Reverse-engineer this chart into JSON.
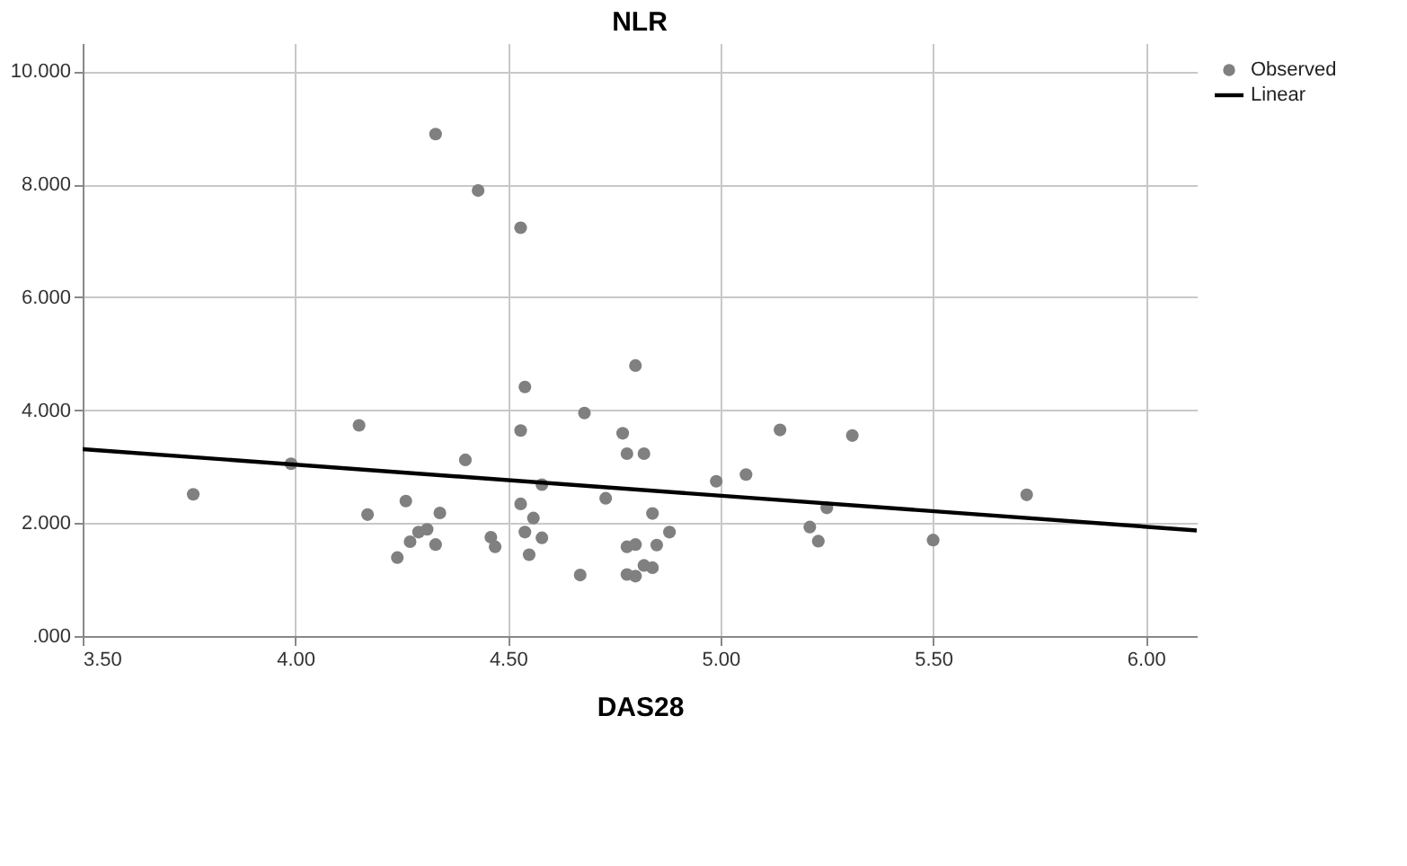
{
  "chart_data": {
    "type": "scatter",
    "title": "NLR",
    "xlabel": "DAS28",
    "xlim": [
      3.5,
      6.12
    ],
    "xticks": [
      {
        "value": 3.5,
        "label": "3.50"
      },
      {
        "value": 4,
        "label": "4.00"
      },
      {
        "value": 4.5,
        "label": "4.50"
      },
      {
        "value": 5,
        "label": "5.00"
      },
      {
        "value": 5.5,
        "label": "5.50"
      },
      {
        "value": 6,
        "label": "6.00"
      }
    ],
    "ylim": [
      0,
      10.5
    ],
    "yticks": [
      {
        "value": 0,
        "label": ".000"
      },
      {
        "value": 2,
        "label": "2.000"
      },
      {
        "value": 4,
        "label": "4.000"
      },
      {
        "value": 6,
        "label": "6.000"
      },
      {
        "value": 8,
        "label": "8.000"
      },
      {
        "value": 10,
        "label": "10.000"
      }
    ],
    "grid": true,
    "legend": "top right",
    "series": [
      {
        "name": "Observed",
        "type": "scatter",
        "marker": "circle",
        "color": "#808080",
        "x": [
          4.33,
          4.43,
          4.53,
          4.8,
          4.54,
          4.68,
          4.15,
          4.53,
          4.77,
          4.4,
          4.78,
          4.82,
          3.99,
          4.58,
          3.76,
          4.73,
          4.26,
          4.53,
          4.17,
          4.34,
          4.56,
          4.84,
          4.31,
          4.29,
          4.88,
          4.54,
          4.46,
          4.58,
          4.27,
          4.33,
          4.47,
          4.78,
          4.8,
          4.85,
          4.24,
          4.55,
          4.82,
          4.84,
          4.67,
          4.78,
          4.8,
          4.99,
          5.06,
          5.14,
          5.31,
          5.25,
          5.21,
          5.23,
          5.5,
          5.72
        ],
        "values": [
          8.89,
          7.89,
          7.23,
          4.79,
          4.41,
          3.95,
          3.73,
          3.64,
          3.59,
          3.12,
          3.23,
          3.23,
          3.05,
          2.68,
          2.51,
          2.44,
          2.39,
          2.34,
          2.15,
          2.18,
          2.09,
          2.17,
          1.89,
          1.84,
          1.84,
          1.84,
          1.75,
          1.74,
          1.67,
          1.62,
          1.58,
          1.58,
          1.62,
          1.61,
          1.39,
          1.44,
          1.25,
          1.21,
          1.08,
          1.09,
          1.06,
          2.74,
          2.86,
          3.65,
          3.55,
          2.27,
          1.93,
          1.68,
          1.7,
          2.5
        ]
      },
      {
        "name": "Linear",
        "type": "line",
        "color": "#000000",
        "line_style": "solid",
        "x": [
          3.5,
          6.12
        ],
        "values": [
          3.31,
          1.87
        ]
      }
    ]
  }
}
